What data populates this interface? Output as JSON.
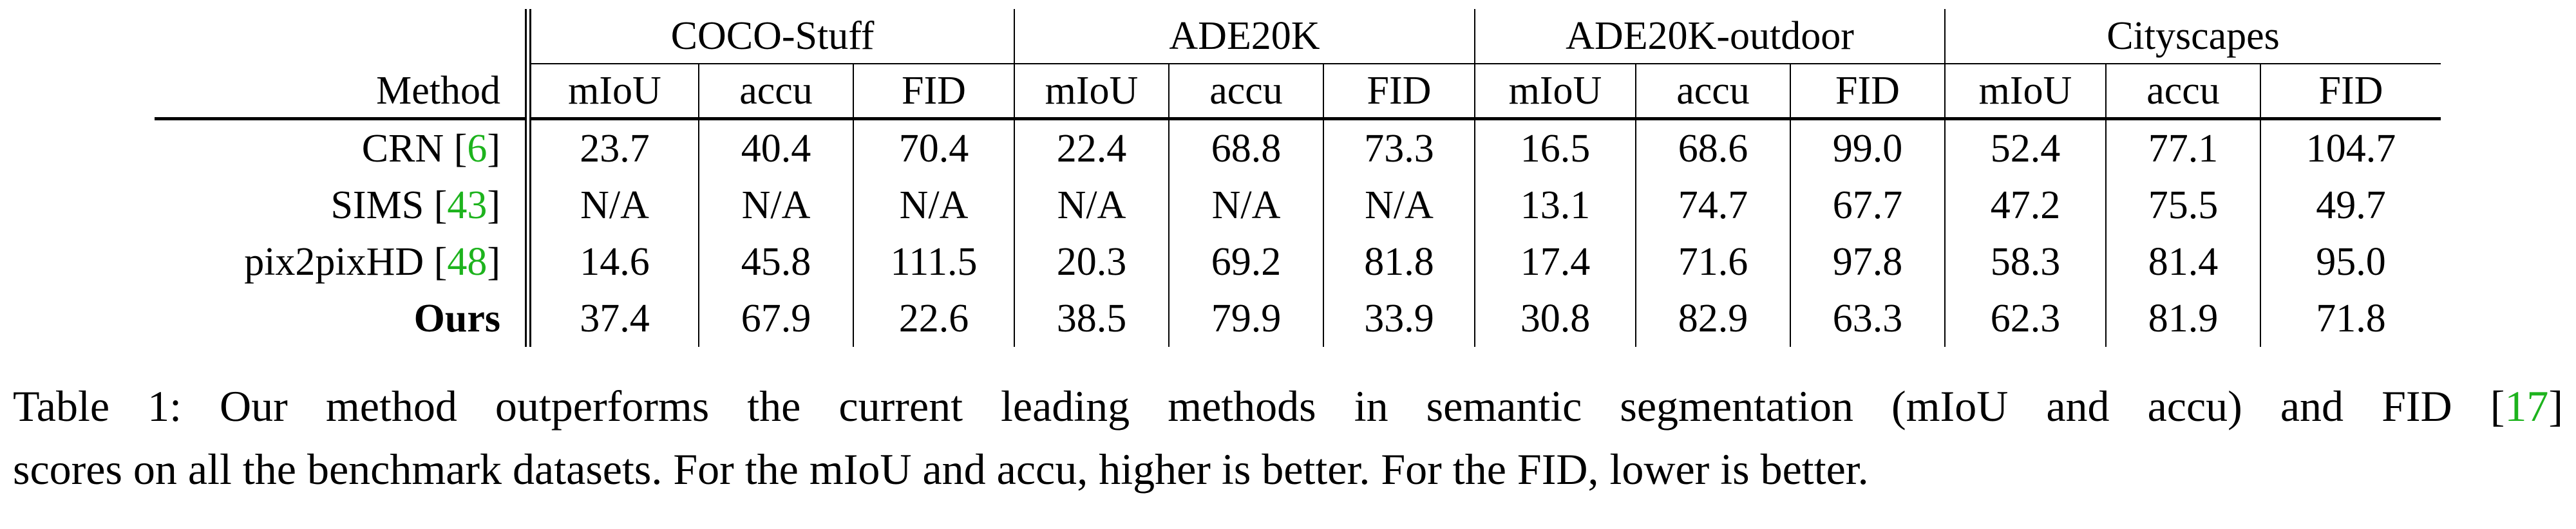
{
  "table": {
    "method_header": "Method",
    "groups": [
      {
        "name": "COCO-Stuff"
      },
      {
        "name": "ADE20K"
      },
      {
        "name": "ADE20K-outdoor"
      },
      {
        "name": "Cityscapes"
      }
    ],
    "metrics": [
      "mIoU",
      "accu",
      "FID"
    ],
    "rows": [
      {
        "method": "CRN",
        "cite_open": " [",
        "cite": "6",
        "cite_close": "]",
        "bold_method": false,
        "values": [
          "23.7",
          "40.4",
          "70.4",
          "22.4",
          "68.8",
          "73.3",
          "16.5",
          "68.6",
          "99.0",
          "52.4",
          "77.1",
          "104.7"
        ],
        "bold": [
          false,
          false,
          false,
          false,
          false,
          false,
          false,
          false,
          false,
          false,
          false,
          false
        ]
      },
      {
        "method": "SIMS",
        "cite_open": " [",
        "cite": "43",
        "cite_close": "]",
        "bold_method": false,
        "values": [
          "N/A",
          "N/A",
          "N/A",
          "N/A",
          "N/A",
          "N/A",
          "13.1",
          "74.7",
          "67.7",
          "47.2",
          "75.5",
          "49.7"
        ],
        "bold": [
          false,
          false,
          false,
          false,
          false,
          false,
          false,
          false,
          false,
          false,
          false,
          true
        ]
      },
      {
        "method": "pix2pixHD",
        "cite_open": " [",
        "cite": "48",
        "cite_close": "]",
        "bold_method": false,
        "values": [
          "14.6",
          "45.8",
          "111.5",
          "20.3",
          "69.2",
          "81.8",
          "17.4",
          "71.6",
          "97.8",
          "58.3",
          "81.4",
          "95.0"
        ],
        "bold": [
          false,
          false,
          false,
          false,
          false,
          false,
          false,
          false,
          false,
          false,
          false,
          false
        ]
      },
      {
        "method": "Ours",
        "cite_open": "",
        "cite": "",
        "cite_close": "",
        "bold_method": true,
        "values": [
          "37.4",
          "67.9",
          "22.6",
          "38.5",
          "79.9",
          "33.9",
          "30.8",
          "82.9",
          "63.3",
          "62.3",
          "81.9",
          "71.8"
        ],
        "bold": [
          true,
          true,
          true,
          true,
          true,
          true,
          true,
          true,
          true,
          true,
          true,
          false
        ]
      }
    ]
  },
  "caption": {
    "line1_before": "Table 1: Our method outperforms the current leading methods in semantic segmentation (mIoU and accu) and FID [",
    "line1_cite": "17",
    "line1_after": "]",
    "line2": "scores on all the benchmark datasets. For the mIoU and accu, higher is better. For the FID, lower is better.",
    "cite_color": "#1db31d"
  }
}
